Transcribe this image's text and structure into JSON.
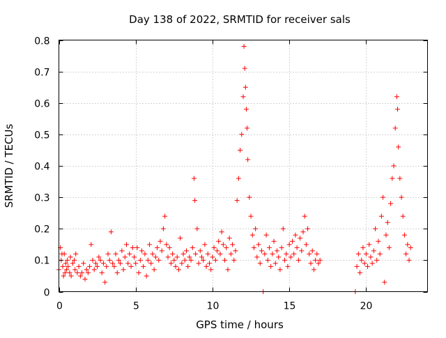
{
  "chart_data": {
    "type": "scatter",
    "title": "Day 138 of 2022, SRMTID for receiver sals",
    "xlabel": "GPS time / hours",
    "ylabel": "SRMTID / TECUs",
    "xlim": [
      0,
      24
    ],
    "ylim": [
      0,
      0.8
    ],
    "x_ticks": [
      0,
      5,
      10,
      15,
      20
    ],
    "x_tick_labels": [
      "0",
      "5",
      "10",
      "15",
      "20"
    ],
    "y_ticks": [
      0,
      0.1,
      0.2,
      0.3,
      0.4,
      0.5,
      0.6,
      0.7,
      0.8
    ],
    "y_tick_labels": [
      "0",
      "0.1",
      "0.2",
      "0.3",
      "0.4",
      "0.5",
      "0.6",
      "0.7",
      "0.8"
    ],
    "grid": true,
    "marker": "+",
    "color": "#ff0000",
    "series": [
      {
        "name": "SRMTID",
        "points": [
          [
            0.0,
            0.07
          ],
          [
            0.1,
            0.14
          ],
          [
            0.15,
            0.1
          ],
          [
            0.2,
            0.12
          ],
          [
            0.25,
            0.08
          ],
          [
            0.3,
            0.05
          ],
          [
            0.35,
            0.12
          ],
          [
            0.4,
            0.06
          ],
          [
            0.45,
            0.09
          ],
          [
            0.5,
            0.07
          ],
          [
            0.55,
            0.1
          ],
          [
            0.6,
            0.08
          ],
          [
            0.7,
            0.06
          ],
          [
            0.75,
            0.11
          ],
          [
            0.8,
            0.05
          ],
          [
            0.9,
            0.09
          ],
          [
            1.0,
            0.1
          ],
          [
            1.05,
            0.07
          ],
          [
            1.1,
            0.12
          ],
          [
            1.2,
            0.06
          ],
          [
            1.3,
            0.08
          ],
          [
            1.4,
            0.05
          ],
          [
            1.5,
            0.06
          ],
          [
            1.6,
            0.09
          ],
          [
            1.7,
            0.04
          ],
          [
            1.8,
            0.07
          ],
          [
            1.9,
            0.06
          ],
          [
            2.0,
            0.08
          ],
          [
            2.1,
            0.15
          ],
          [
            2.2,
            0.1
          ],
          [
            2.3,
            0.07
          ],
          [
            2.4,
            0.09
          ],
          [
            2.5,
            0.08
          ],
          [
            2.6,
            0.11
          ],
          [
            2.7,
            0.1
          ],
          [
            2.8,
            0.06
          ],
          [
            2.9,
            0.09
          ],
          [
            3.0,
            0.03
          ],
          [
            3.1,
            0.08
          ],
          [
            3.2,
            0.12
          ],
          [
            3.3,
            0.1
          ],
          [
            3.4,
            0.19
          ],
          [
            3.5,
            0.09
          ],
          [
            3.6,
            0.08
          ],
          [
            3.7,
            0.12
          ],
          [
            3.8,
            0.06
          ],
          [
            3.9,
            0.1
          ],
          [
            4.0,
            0.09
          ],
          [
            4.1,
            0.13
          ],
          [
            4.2,
            0.07
          ],
          [
            4.3,
            0.11
          ],
          [
            4.4,
            0.15
          ],
          [
            4.5,
            0.09
          ],
          [
            4.6,
            0.12
          ],
          [
            4.7,
            0.08
          ],
          [
            4.8,
            0.14
          ],
          [
            4.9,
            0.11
          ],
          [
            5.0,
            0.09
          ],
          [
            5.1,
            0.14
          ],
          [
            5.2,
            0.06
          ],
          [
            5.3,
            0.1
          ],
          [
            5.4,
            0.13
          ],
          [
            5.5,
            0.08
          ],
          [
            5.6,
            0.12
          ],
          [
            5.7,
            0.05
          ],
          [
            5.8,
            0.1
          ],
          [
            5.9,
            0.15
          ],
          [
            6.0,
            0.09
          ],
          [
            6.1,
            0.12
          ],
          [
            6.2,
            0.07
          ],
          [
            6.3,
            0.11
          ],
          [
            6.4,
            0.14
          ],
          [
            6.5,
            0.1
          ],
          [
            6.6,
            0.16
          ],
          [
            6.7,
            0.13
          ],
          [
            6.8,
            0.2
          ],
          [
            6.9,
            0.24
          ],
          [
            7.0,
            0.15
          ],
          [
            7.1,
            0.11
          ],
          [
            7.2,
            0.14
          ],
          [
            7.3,
            0.09
          ],
          [
            7.4,
            0.12
          ],
          [
            7.5,
            0.1
          ],
          [
            7.6,
            0.08
          ],
          [
            7.7,
            0.11
          ],
          [
            7.8,
            0.07
          ],
          [
            7.9,
            0.17
          ],
          [
            8.0,
            0.09
          ],
          [
            8.1,
            0.12
          ],
          [
            8.2,
            0.1
          ],
          [
            8.3,
            0.13
          ],
          [
            8.4,
            0.08
          ],
          [
            8.5,
            0.11
          ],
          [
            8.6,
            0.1
          ],
          [
            8.7,
            0.14
          ],
          [
            8.8,
            0.36
          ],
          [
            8.85,
            0.29
          ],
          [
            8.9,
            0.12
          ],
          [
            9.0,
            0.2
          ],
          [
            9.1,
            0.09
          ],
          [
            9.2,
            0.13
          ],
          [
            9.3,
            0.11
          ],
          [
            9.4,
            0.1
          ],
          [
            9.5,
            0.15
          ],
          [
            9.6,
            0.08
          ],
          [
            9.7,
            0.12
          ],
          [
            9.8,
            0.09
          ],
          [
            9.9,
            0.07
          ],
          [
            10.0,
            0.11
          ],
          [
            10.1,
            0.14
          ],
          [
            10.2,
            0.1
          ],
          [
            10.3,
            0.13
          ],
          [
            10.4,
            0.16
          ],
          [
            10.5,
            0.12
          ],
          [
            10.6,
            0.19
          ],
          [
            10.7,
            0.15
          ],
          [
            10.8,
            0.1
          ],
          [
            10.9,
            0.14
          ],
          [
            11.0,
            0.07
          ],
          [
            11.1,
            0.17
          ],
          [
            11.2,
            0.12
          ],
          [
            11.3,
            0.15
          ],
          [
            11.4,
            0.1
          ],
          [
            11.5,
            0.13
          ],
          [
            11.6,
            0.29
          ],
          [
            11.7,
            0.36
          ],
          [
            11.8,
            0.45
          ],
          [
            11.9,
            0.5
          ],
          [
            12.0,
            0.62
          ],
          [
            12.05,
            0.78
          ],
          [
            12.1,
            0.71
          ],
          [
            12.15,
            0.65
          ],
          [
            12.2,
            0.58
          ],
          [
            12.25,
            0.52
          ],
          [
            12.3,
            0.42
          ],
          [
            12.4,
            0.3
          ],
          [
            12.5,
            0.24
          ],
          [
            12.6,
            0.18
          ],
          [
            12.7,
            0.14
          ],
          [
            12.8,
            0.2
          ],
          [
            12.9,
            0.11
          ],
          [
            13.0,
            0.15
          ],
          [
            13.1,
            0.09
          ],
          [
            13.2,
            0.13
          ],
          [
            13.3,
            0.0
          ],
          [
            13.4,
            0.12
          ],
          [
            13.5,
            0.18
          ],
          [
            13.6,
            0.1
          ],
          [
            13.7,
            0.14
          ],
          [
            13.8,
            0.08
          ],
          [
            13.9,
            0.12
          ],
          [
            14.0,
            0.16
          ],
          [
            14.1,
            0.09
          ],
          [
            14.2,
            0.13
          ],
          [
            14.3,
            0.11
          ],
          [
            14.4,
            0.07
          ],
          [
            14.5,
            0.14
          ],
          [
            14.6,
            0.2
          ],
          [
            14.7,
            0.1
          ],
          [
            14.8,
            0.12
          ],
          [
            14.9,
            0.08
          ],
          [
            15.0,
            0.15
          ],
          [
            15.1,
            0.11
          ],
          [
            15.2,
            0.16
          ],
          [
            15.3,
            0.12
          ],
          [
            15.4,
            0.18
          ],
          [
            15.5,
            0.14
          ],
          [
            15.6,
            0.1
          ],
          [
            15.7,
            0.17
          ],
          [
            15.8,
            0.13
          ],
          [
            15.9,
            0.19
          ],
          [
            16.0,
            0.24
          ],
          [
            16.1,
            0.15
          ],
          [
            16.2,
            0.2
          ],
          [
            16.3,
            0.12
          ],
          [
            16.4,
            0.09
          ],
          [
            16.5,
            0.13
          ],
          [
            16.6,
            0.07
          ],
          [
            16.7,
            0.1
          ],
          [
            16.8,
            0.12
          ],
          [
            16.9,
            0.09
          ],
          [
            17.0,
            0.1
          ],
          [
            19.3,
            0.0
          ],
          [
            19.4,
            0.08
          ],
          [
            19.5,
            0.12
          ],
          [
            19.6,
            0.06
          ],
          [
            19.7,
            0.1
          ],
          [
            19.8,
            0.14
          ],
          [
            19.9,
            0.09
          ],
          [
            20.0,
            0.12
          ],
          [
            20.1,
            0.08
          ],
          [
            20.2,
            0.15
          ],
          [
            20.3,
            0.11
          ],
          [
            20.4,
            0.09
          ],
          [
            20.5,
            0.13
          ],
          [
            20.6,
            0.2
          ],
          [
            20.7,
            0.1
          ],
          [
            20.8,
            0.16
          ],
          [
            20.9,
            0.12
          ],
          [
            21.0,
            0.24
          ],
          [
            21.1,
            0.3
          ],
          [
            21.2,
            0.03
          ],
          [
            21.3,
            0.18
          ],
          [
            21.4,
            0.22
          ],
          [
            21.5,
            0.14
          ],
          [
            21.6,
            0.28
          ],
          [
            21.7,
            0.36
          ],
          [
            21.8,
            0.4
          ],
          [
            21.9,
            0.52
          ],
          [
            22.0,
            0.62
          ],
          [
            22.05,
            0.58
          ],
          [
            22.1,
            0.46
          ],
          [
            22.2,
            0.36
          ],
          [
            22.3,
            0.3
          ],
          [
            22.4,
            0.24
          ],
          [
            22.5,
            0.18
          ],
          [
            22.6,
            0.12
          ],
          [
            22.7,
            0.15
          ],
          [
            22.8,
            0.1
          ],
          [
            22.9,
            0.14
          ]
        ]
      }
    ]
  }
}
